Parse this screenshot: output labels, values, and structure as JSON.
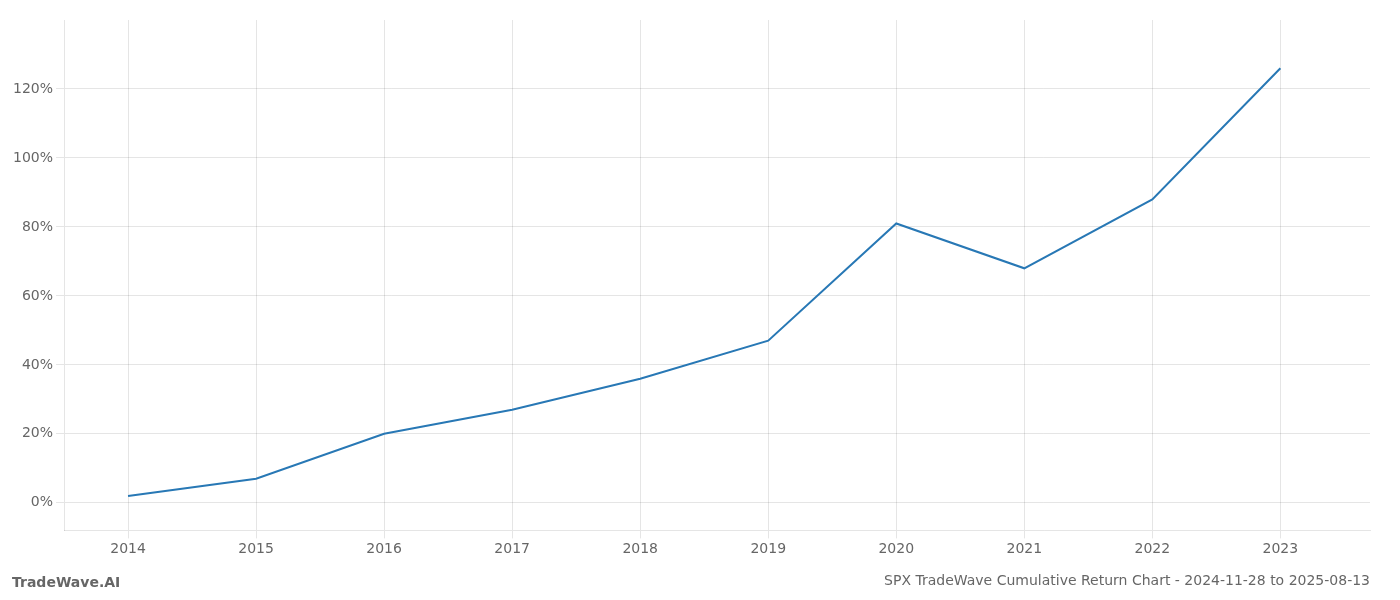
{
  "chart_data": {
    "type": "line",
    "title": "SPX TradeWave Cumulative Return Chart - 2024-11-28 to 2025-08-13",
    "annotations": [
      "TradeWave.AI"
    ],
    "x": [
      2014,
      2015,
      2016,
      2017,
      2018,
      2019,
      2020,
      2021,
      2022,
      2023
    ],
    "values": [
      2,
      7,
      20,
      27,
      36,
      47,
      81,
      68,
      88,
      126
    ],
    "color": "#2878b5",
    "xlim": [
      2013.5,
      2023.7
    ],
    "xticks": [
      2014,
      2015,
      2016,
      2017,
      2018,
      2019,
      2020,
      2021,
      2022,
      2023
    ],
    "ylim": [
      -8,
      140
    ],
    "yticks": [
      {
        "value": 0,
        "label": "0%"
      },
      {
        "value": 20,
        "label": "20%"
      },
      {
        "value": 40,
        "label": "40%"
      },
      {
        "value": 60,
        "label": "60%"
      },
      {
        "value": 80,
        "label": "80%"
      },
      {
        "value": 100,
        "label": "100%"
      },
      {
        "value": 120,
        "label": "120%"
      }
    ],
    "grid": true
  }
}
